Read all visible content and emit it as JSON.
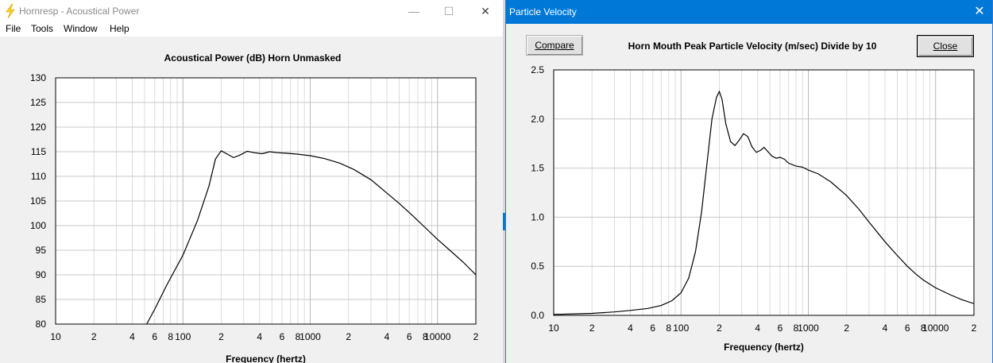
{
  "main_window": {
    "title": "Hornresp - Acoustical Power",
    "menu": [
      "File",
      "Tools",
      "Window",
      "Help"
    ],
    "controls": {
      "minimize": "—",
      "maximize": "☐",
      "close": "✕"
    },
    "chart_title": "Acoustical Power (dB)   Horn   Unmasked",
    "xlabel": "Frequency (hertz)"
  },
  "pv_window": {
    "title": "Particle Velocity",
    "close_x": "✕",
    "compare_label": "Compare",
    "close_label": "Close",
    "header": "Horn Mouth Peak Particle Velocity (m/sec)    Divide by 10",
    "xlabel": "Frequency (hertz)"
  },
  "chart_data": [
    {
      "type": "line",
      "title": "Acoustical Power (dB)   Horn   Unmasked",
      "xlabel": "Frequency (hertz)",
      "ylabel": "",
      "xscale": "log",
      "xlim": [
        10,
        20000
      ],
      "ylim": [
        80,
        130
      ],
      "yticks": [
        "130",
        "125",
        "120",
        "115",
        "110",
        "105",
        "100",
        "95",
        "90",
        "85",
        "80"
      ],
      "xtick_labels": [
        {
          "f": 10,
          "label": "10"
        },
        {
          "f": 20,
          "label": "2"
        },
        {
          "f": 40,
          "label": "4"
        },
        {
          "f": 60,
          "label": "6"
        },
        {
          "f": 80,
          "label": "8"
        },
        {
          "f": 100,
          "label": "100"
        },
        {
          "f": 200,
          "label": "2"
        },
        {
          "f": 400,
          "label": "4"
        },
        {
          "f": 600,
          "label": "6"
        },
        {
          "f": 800,
          "label": "8"
        },
        {
          "f": 1000,
          "label": "1000"
        },
        {
          "f": 2000,
          "label": "2"
        },
        {
          "f": 4000,
          "label": "4"
        },
        {
          "f": 6000,
          "label": "6"
        },
        {
          "f": 8000,
          "label": "8"
        },
        {
          "f": 10000,
          "label": "10000"
        },
        {
          "f": 20000,
          "label": "2"
        }
      ],
      "grid": true,
      "series": [
        {
          "x": [
            52,
            60,
            75,
            100,
            130,
            160,
            180,
            200,
            220,
            250,
            280,
            320,
            360,
            420,
            480,
            550,
            650,
            800,
            1000,
            1300,
            1700,
            2200,
            3000,
            4000,
            5000,
            6500,
            8000,
            10000,
            13000,
            16000,
            20000
          ],
          "y": [
            80,
            83,
            88,
            94,
            101,
            108,
            113.5,
            115.2,
            114.6,
            113.8,
            114.3,
            115.1,
            114.8,
            114.6,
            115.0,
            114.8,
            114.7,
            114.5,
            114.2,
            113.6,
            112.7,
            111.4,
            109.3,
            106.6,
            104.5,
            101.8,
            99.6,
            97.2,
            94.6,
            92.5,
            90.0
          ]
        }
      ]
    },
    {
      "type": "line",
      "title": "Horn Mouth Peak Particle Velocity (m/sec)    Divide by 10",
      "xlabel": "Frequency (hertz)",
      "ylabel": "",
      "xscale": "log",
      "xlim": [
        10,
        20000
      ],
      "ylim": [
        0,
        2.5
      ],
      "yticks": [
        "2.5",
        "2.0",
        "1.5",
        "1.0",
        "0.5",
        "0.0"
      ],
      "xtick_labels": [
        {
          "f": 10,
          "label": "10"
        },
        {
          "f": 20,
          "label": "2"
        },
        {
          "f": 40,
          "label": "4"
        },
        {
          "f": 60,
          "label": "6"
        },
        {
          "f": 80,
          "label": "8"
        },
        {
          "f": 100,
          "label": "100"
        },
        {
          "f": 200,
          "label": "2"
        },
        {
          "f": 400,
          "label": "4"
        },
        {
          "f": 600,
          "label": "6"
        },
        {
          "f": 800,
          "label": "8"
        },
        {
          "f": 1000,
          "label": "1000"
        },
        {
          "f": 2000,
          "label": "2"
        },
        {
          "f": 4000,
          "label": "4"
        },
        {
          "f": 6000,
          "label": "6"
        },
        {
          "f": 8000,
          "label": "8"
        },
        {
          "f": 10000,
          "label": "10000"
        },
        {
          "f": 20000,
          "label": "2"
        }
      ],
      "grid": true,
      "series": [
        {
          "x": [
            10,
            15,
            20,
            30,
            40,
            55,
            70,
            85,
            100,
            115,
            130,
            145,
            160,
            175,
            190,
            200,
            210,
            225,
            245,
            265,
            285,
            310,
            335,
            360,
            390,
            420,
            450,
            480,
            520,
            560,
            600,
            650,
            700,
            800,
            900,
            1000,
            1200,
            1500,
            2000,
            2500,
            3000,
            4000,
            5000,
            6000,
            7000,
            8000,
            10000,
            13000,
            16000,
            20000
          ],
          "y": [
            0.01,
            0.015,
            0.02,
            0.035,
            0.05,
            0.07,
            0.1,
            0.15,
            0.23,
            0.38,
            0.65,
            1.05,
            1.55,
            2.0,
            2.22,
            2.28,
            2.2,
            1.95,
            1.77,
            1.73,
            1.78,
            1.85,
            1.82,
            1.72,
            1.66,
            1.68,
            1.71,
            1.67,
            1.62,
            1.6,
            1.61,
            1.59,
            1.55,
            1.52,
            1.51,
            1.48,
            1.44,
            1.36,
            1.22,
            1.08,
            0.95,
            0.75,
            0.61,
            0.5,
            0.42,
            0.36,
            0.28,
            0.21,
            0.16,
            0.12
          ]
        }
      ]
    }
  ]
}
